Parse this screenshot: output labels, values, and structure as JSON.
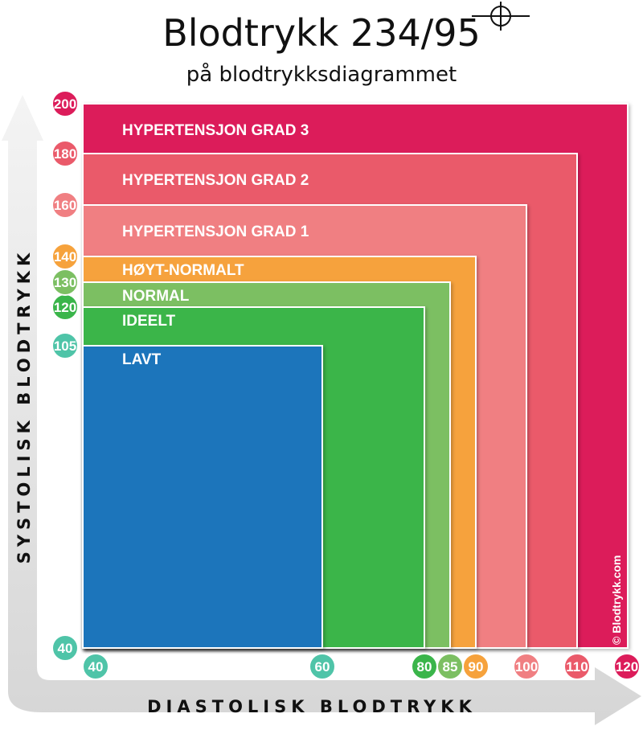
{
  "header": {
    "title": "Blodtrykk 234/95",
    "subtitle": "på blodtrykksdiagrammet"
  },
  "chart_data": {
    "type": "area",
    "title": "Blodtrykk 234/95",
    "subtitle": "på blodtrykksdiagrammet",
    "xlabel": "DIASTOLISK BLODTRYKK",
    "ylabel": "SYSTOLISK BLODTRYKK",
    "x_ticks": [
      {
        "value": 40,
        "label": "40",
        "color": "#4fc4a8"
      },
      {
        "value": 60,
        "label": "60",
        "color": "#4fc4a8"
      },
      {
        "value": 80,
        "label": "80",
        "color": "#3ab54a"
      },
      {
        "value": 85,
        "label": "85",
        "color": "#7cbf62"
      },
      {
        "value": 90,
        "label": "90",
        "color": "#f6a23c"
      },
      {
        "value": 100,
        "label": "100",
        "color": "#f07f82"
      },
      {
        "value": 110,
        "label": "110",
        "color": "#ea5a6a"
      },
      {
        "value": 120,
        "label": "120",
        "color": "#dc1c5a"
      }
    ],
    "y_ticks": [
      {
        "value": 40,
        "label": "40",
        "color": "#4fc4a8"
      },
      {
        "value": 105,
        "label": "105",
        "color": "#4fc4a8"
      },
      {
        "value": 120,
        "label": "120",
        "color": "#3ab54a"
      },
      {
        "value": 130,
        "label": "130",
        "color": "#7cbf62"
      },
      {
        "value": 140,
        "label": "140",
        "color": "#f6a23c"
      },
      {
        "value": 160,
        "label": "160",
        "color": "#f07f82"
      },
      {
        "value": 180,
        "label": "180",
        "color": "#ea5a6a"
      },
      {
        "value": 200,
        "label": "200",
        "color": "#dc1c5a"
      }
    ],
    "zones": [
      {
        "name": "HYPERTENSJON GRAD 3",
        "max_diastolic": 120,
        "max_systolic": 200,
        "color": "#dc1c5a"
      },
      {
        "name": "HYPERTENSJON GRAD 2",
        "max_diastolic": 110,
        "max_systolic": 180,
        "color": "#ea5a6a"
      },
      {
        "name": "HYPERTENSJON GRAD 1",
        "max_diastolic": 100,
        "max_systolic": 160,
        "color": "#f07f82"
      },
      {
        "name": "HØYT-NORMALT",
        "max_diastolic": 90,
        "max_systolic": 140,
        "color": "#f6a23c"
      },
      {
        "name": "NORMAL",
        "max_diastolic": 85,
        "max_systolic": 130,
        "color": "#7cbf62"
      },
      {
        "name": "IDEELT",
        "max_diastolic": 80,
        "max_systolic": 120,
        "color": "#3ab54a"
      },
      {
        "name": "LAVT",
        "max_diastolic": 60,
        "max_systolic": 105,
        "color": "#1f74bb"
      }
    ],
    "marker": {
      "systolic": 234,
      "diastolic": 95,
      "icon": "crosshair-icon"
    },
    "credit": "© Blodtrykk.com"
  }
}
